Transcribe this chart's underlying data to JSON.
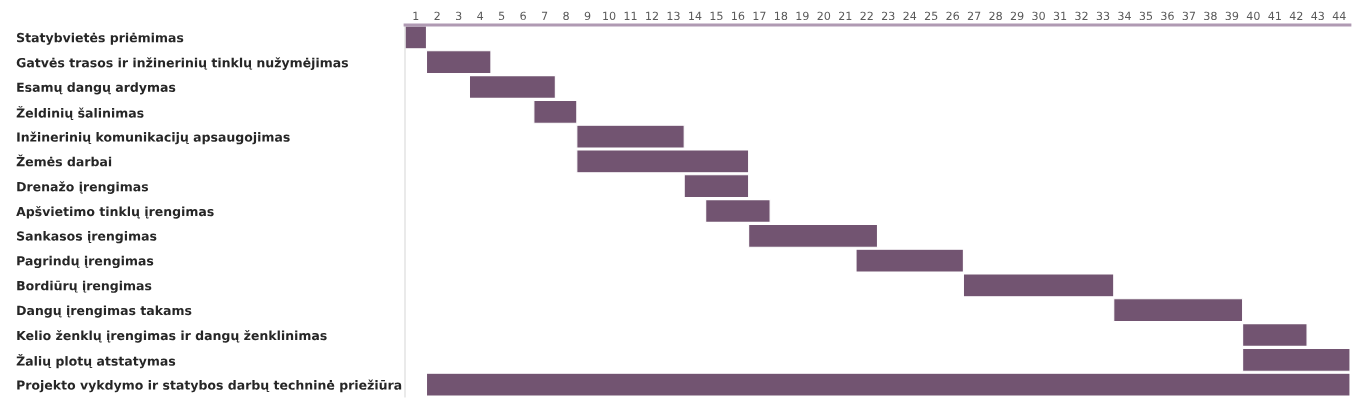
{
  "chart_data": {
    "type": "bar",
    "orientation": "horizontal",
    "categories": [
      "Statybvietės priėmimas",
      "Gatvės trasos ir inžinerinių tinklų nužymėjimas",
      "Esamų dangų ardymas",
      "Želdinių šalinimas",
      "Inžinerinių komunikacijų apsaugojimas",
      "Žemės darbai",
      "Drenažo įrengimas",
      "Apšvietimo tinklų įrengimas",
      "Sankasos įrengimas",
      "Pagrindų įrengimas",
      "Bordiūrų įrengimas",
      "Dangų įrengimas takams",
      "Kelio ženklų įrengimas ir dangų ženklinimas",
      "Žalių plotų atstatymas",
      "Projekto vykdymo ir statybos darbų techninė priežiūra"
    ],
    "base": [
      0.5,
      1.5,
      3.5,
      6.5,
      8.5,
      8.5,
      13.5,
      14.5,
      16.5,
      21.5,
      26.5,
      33.5,
      39.5,
      39.5,
      1.5
    ],
    "values": [
      1,
      3,
      4,
      2,
      5,
      8,
      3,
      3,
      6,
      5,
      7,
      6,
      3,
      5,
      43
    ],
    "color": "#725471",
    "xlim": [
      0.5,
      44.5
    ],
    "xticks": [
      1,
      2,
      3,
      4,
      5,
      6,
      7,
      8,
      9,
      10,
      11,
      12,
      13,
      14,
      15,
      16,
      17,
      18,
      19,
      20,
      21,
      22,
      23,
      24,
      25,
      26,
      27,
      28,
      29,
      30,
      31,
      32,
      33,
      34,
      35,
      36,
      37,
      38,
      39,
      40,
      41,
      42,
      43,
      44
    ],
    "grid": false
  }
}
